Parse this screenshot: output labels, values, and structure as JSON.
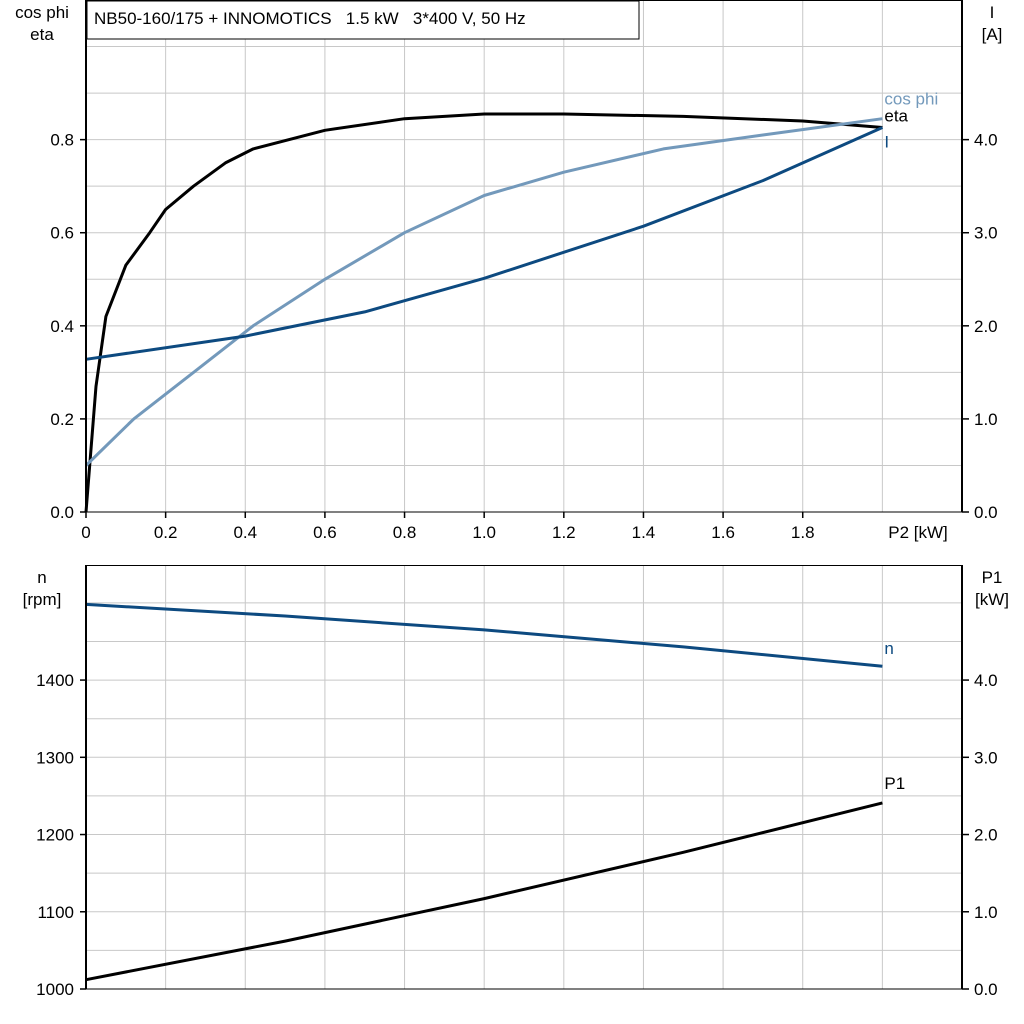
{
  "chart_data": [
    {
      "type": "line",
      "title": "NB50-160/175 + INNOMOTICS   1.5 kW   3*400 V, 50 Hz",
      "xlabel": "P2 [kW]",
      "ylabel_left": [
        "cos phi",
        "eta"
      ],
      "ylabel_right": [
        "I",
        "[A]"
      ],
      "xlim": [
        0,
        2.2
      ],
      "ylim_left": [
        0,
        1.1
      ],
      "ylim_right": [
        0,
        5.5
      ],
      "x_ticks": [
        "0",
        "0.2",
        "0.4",
        "0.6",
        "0.8",
        "1.0",
        "1.2",
        "1.4",
        "1.6",
        "1.8"
      ],
      "y_ticks_left": [
        "0.0",
        "0.2",
        "0.4",
        "0.6",
        "0.8"
      ],
      "y_ticks_right": [
        "0.0",
        "1.0",
        "2.0",
        "3.0",
        "4.0"
      ],
      "grid": true,
      "series": [
        {
          "name": "eta",
          "axis": "left",
          "color": "#000000",
          "x": [
            0,
            0.025,
            0.05,
            0.1,
            0.16,
            0.2,
            0.27,
            0.35,
            0.42,
            0.6,
            0.8,
            1.0,
            1.2,
            1.5,
            1.8,
            2.0
          ],
          "y": [
            0,
            0.27,
            0.42,
            0.53,
            0.6,
            0.65,
            0.7,
            0.75,
            0.78,
            0.82,
            0.845,
            0.855,
            0.855,
            0.85,
            0.84,
            0.826
          ]
        },
        {
          "name": "cos phi",
          "axis": "left",
          "color": "#7399bb",
          "x": [
            0,
            0.12,
            0.27,
            0.42,
            0.6,
            0.8,
            1.0,
            1.2,
            1.45,
            1.7,
            2.0
          ],
          "y": [
            0.1,
            0.2,
            0.3,
            0.4,
            0.5,
            0.6,
            0.68,
            0.73,
            0.78,
            0.81,
            0.845
          ]
        },
        {
          "name": "I",
          "axis": "right",
          "color": "#0d4a80",
          "x": [
            0,
            0.4,
            0.7,
            1.0,
            1.4,
            1.7,
            2.0
          ],
          "y": [
            1.64,
            1.89,
            2.15,
            2.51,
            3.07,
            3.56,
            4.13
          ]
        }
      ]
    },
    {
      "type": "line",
      "xlim": [
        0,
        2.2
      ],
      "ylabel_left": [
        "n",
        "[rpm]"
      ],
      "ylabel_right": [
        "P1",
        "[kW]"
      ],
      "ylim_left": [
        1000,
        1549
      ],
      "ylim_right": [
        0,
        5.49
      ],
      "y_ticks_left": [
        "1000",
        "1100",
        "1200",
        "1300",
        "1400"
      ],
      "y_ticks_right": [
        "0.0",
        "1.0",
        "2.0",
        "3.0",
        "4.0"
      ],
      "grid": true,
      "series": [
        {
          "name": "n",
          "axis": "left",
          "color": "#0d4a80",
          "x": [
            0,
            0.5,
            1.0,
            1.5,
            2.0
          ],
          "y": [
            1498,
            1483,
            1465,
            1443,
            1418
          ]
        },
        {
          "name": "P1",
          "axis": "right",
          "color": "#000000",
          "x": [
            0,
            0.5,
            1.0,
            1.5,
            2.0
          ],
          "y": [
            0.12,
            0.62,
            1.17,
            1.77,
            2.41
          ]
        }
      ]
    }
  ]
}
